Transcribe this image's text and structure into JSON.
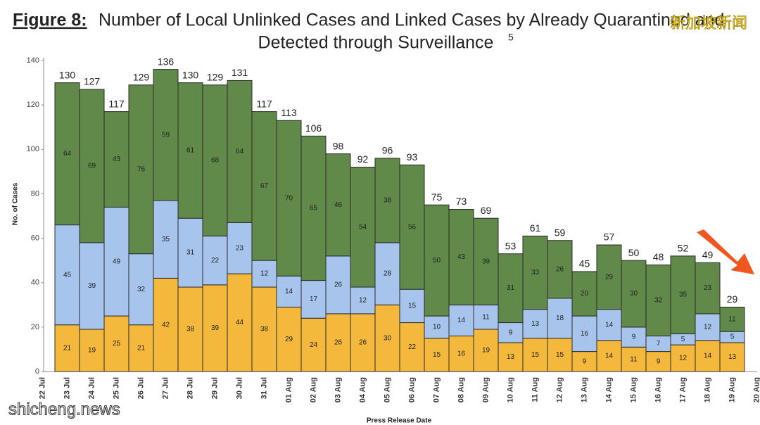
{
  "chart_data": {
    "type": "stacked-bar",
    "figure_label": "Figure 8:",
    "title": "Number of Local Unlinked Cases and Linked Cases by Already Quarantined and",
    "title_line_2": "Detected through Surveillance",
    "footnote_mark": "5",
    "watermark_top": "新加坡新闻",
    "watermark_bottom": "shicheng.news",
    "y_label": "No. of Cases",
    "x_label": "Press Release Date",
    "categories": [
      "22 Jul",
      "23 Jul",
      "24 Jul",
      "25 Jul",
      "26 Jul",
      "27 Jul",
      "28 Jul",
      "29 Jul",
      "30 Jul",
      "31 Jul",
      "01 Aug",
      "02 Aug",
      "03 Aug",
      "04 Aug",
      "05 Aug",
      "06 Aug",
      "07 Aug",
      "08 Aug",
      "09 Aug",
      "10 Aug",
      "11 Aug",
      "12 Aug",
      "13 Aug",
      "14 Aug",
      "15 Aug",
      "16 Aug",
      "17 Aug",
      "18 Aug",
      "19 Aug",
      "20 Aug"
    ],
    "series": [
      {
        "color": "#f4b93c",
        "values": [
          null,
          21,
          19,
          25,
          21,
          42,
          38,
          39,
          44,
          38,
          29,
          24,
          26,
          26,
          30,
          22,
          15,
          16,
          19,
          13,
          15,
          15,
          9,
          14,
          11,
          9,
          12,
          14,
          13,
          null
        ]
      },
      {
        "color": "#a7c4ec",
        "values": [
          null,
          45,
          39,
          49,
          32,
          35,
          31,
          22,
          23,
          12,
          14,
          17,
          26,
          12,
          28,
          15,
          10,
          14,
          11,
          9,
          13,
          18,
          16,
          14,
          9,
          7,
          5,
          12,
          5,
          null
        ]
      },
      {
        "color": "#60894a",
        "values": [
          null,
          64,
          69,
          43,
          76,
          59,
          61,
          68,
          64,
          67,
          70,
          65,
          46,
          54,
          38,
          56,
          50,
          43,
          39,
          31,
          33,
          26,
          20,
          29,
          30,
          32,
          35,
          23,
          11,
          null
        ]
      }
    ],
    "totals": [
      null,
      130,
      127,
      117,
      129,
      136,
      130,
      129,
      131,
      117,
      113,
      106,
      98,
      92,
      96,
      93,
      75,
      73,
      69,
      53,
      61,
      59,
      45,
      57,
      50,
      48,
      52,
      49,
      29,
      null
    ],
    "ylim": [
      0,
      140
    ],
    "yticks": [
      0,
      20,
      40,
      60,
      80,
      100,
      120,
      140
    ]
  }
}
